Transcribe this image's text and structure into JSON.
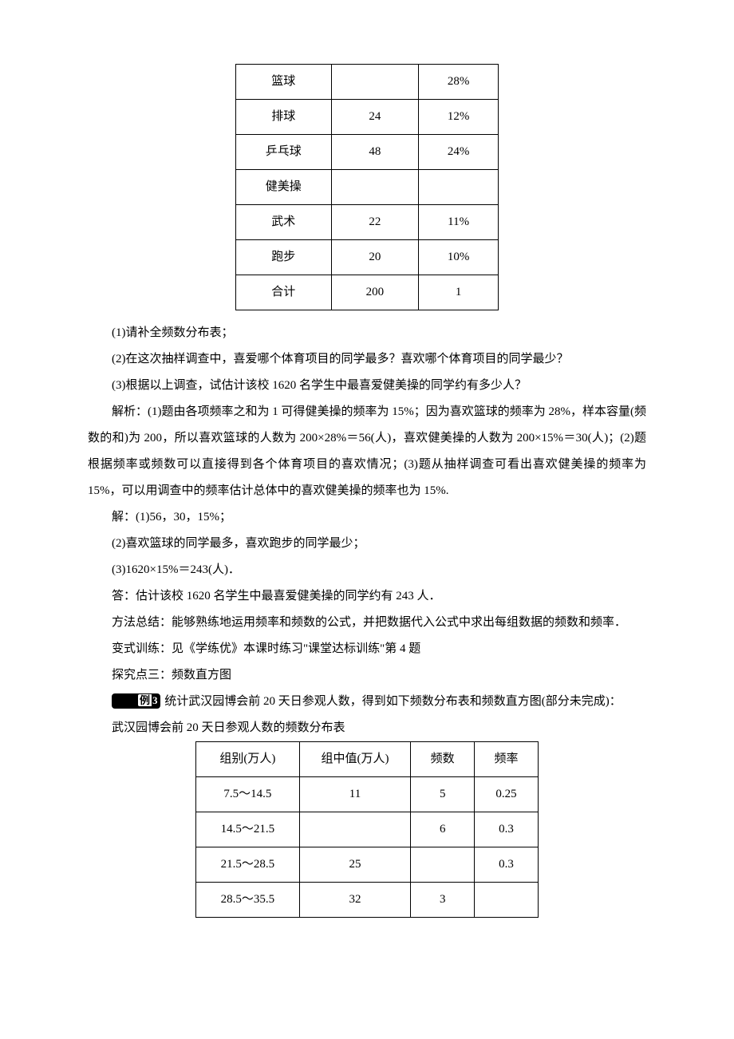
{
  "table1": {
    "rows": [
      {
        "c1": "篮球",
        "c2": "",
        "c3": "28%"
      },
      {
        "c1": "排球",
        "c2": "24",
        "c3": "12%"
      },
      {
        "c1": "乒乓球",
        "c2": "48",
        "c3": "24%"
      },
      {
        "c1": "健美操",
        "c2": "",
        "c3": ""
      },
      {
        "c1": "武术",
        "c2": "22",
        "c3": "11%"
      },
      {
        "c1": "跑步",
        "c2": "20",
        "c3": "10%"
      },
      {
        "c1": "合计",
        "c2": "200",
        "c3": "1"
      }
    ]
  },
  "q1": "(1)请补全频数分布表；",
  "q2": "(2)在这次抽样调查中，喜爱哪个体育项目的同学最多？喜欢哪个体育项目的同学最少？",
  "q3": "(3)根据以上调查，试估计该校 1620 名学生中最喜爱健美操的同学约有多少人？",
  "analysis": "解析：(1)题由各项频率之和为 1 可得健美操的频率为 15%；因为喜欢篮球的频率为 28%，样本容量(频数的和)为 200，所以喜欢篮球的人数为 200×28%＝56(人)，喜欢健美操的人数为 200×15%＝30(人)；(2)题根据频率或频数可以直接得到各个体育项目的喜欢情况；(3)题从抽样调查可看出喜欢健美操的频率为 15%，可以用调查中的频率估计总体中的喜欢健美操的频率也为 15%.",
  "sol1": "解：(1)56，30，15%；",
  "sol2": "(2)喜欢篮球的同学最多，喜欢跑步的同学最少；",
  "sol3": "(3)1620×15%＝243(人)．",
  "ans": "答：估计该校 1620 名学生中最喜爱健美操的同学约有 243 人．",
  "method": "方法总结：能够熟练地运用频率和频数的公式，并把数据代入公式中求出每组数据的频数和频率．",
  "variant": "变式训练：见《学练优》本课时练习\"课堂达标训练\"第 4 题",
  "explore": "探究点三：频数直方图",
  "example_label_white": "例",
  "example_label_black": "3",
  "example3": " 统计武汉园博会前 20 天日参观人数，得到如下频数分布表和频数直方图(部分未完成)：",
  "table2_title": "武汉园博会前 20 天日参观人数的频数分布表",
  "table2": {
    "header": {
      "c1": "组别(万人)",
      "c2": "组中值(万人)",
      "c3": "频数",
      "c4": "频率"
    },
    "rows": [
      {
        "c1": "7.5～14.5",
        "c2": "11",
        "c3": "5",
        "c4": "0.25"
      },
      {
        "c1": "14.5～21.5",
        "c2": "",
        "c3": "6",
        "c4": "0.3"
      },
      {
        "c1": "21.5～28.5",
        "c2": "25",
        "c3": "",
        "c4": "0.3"
      },
      {
        "c1": "28.5～35.5",
        "c2": "32",
        "c3": "3",
        "c4": ""
      }
    ]
  }
}
